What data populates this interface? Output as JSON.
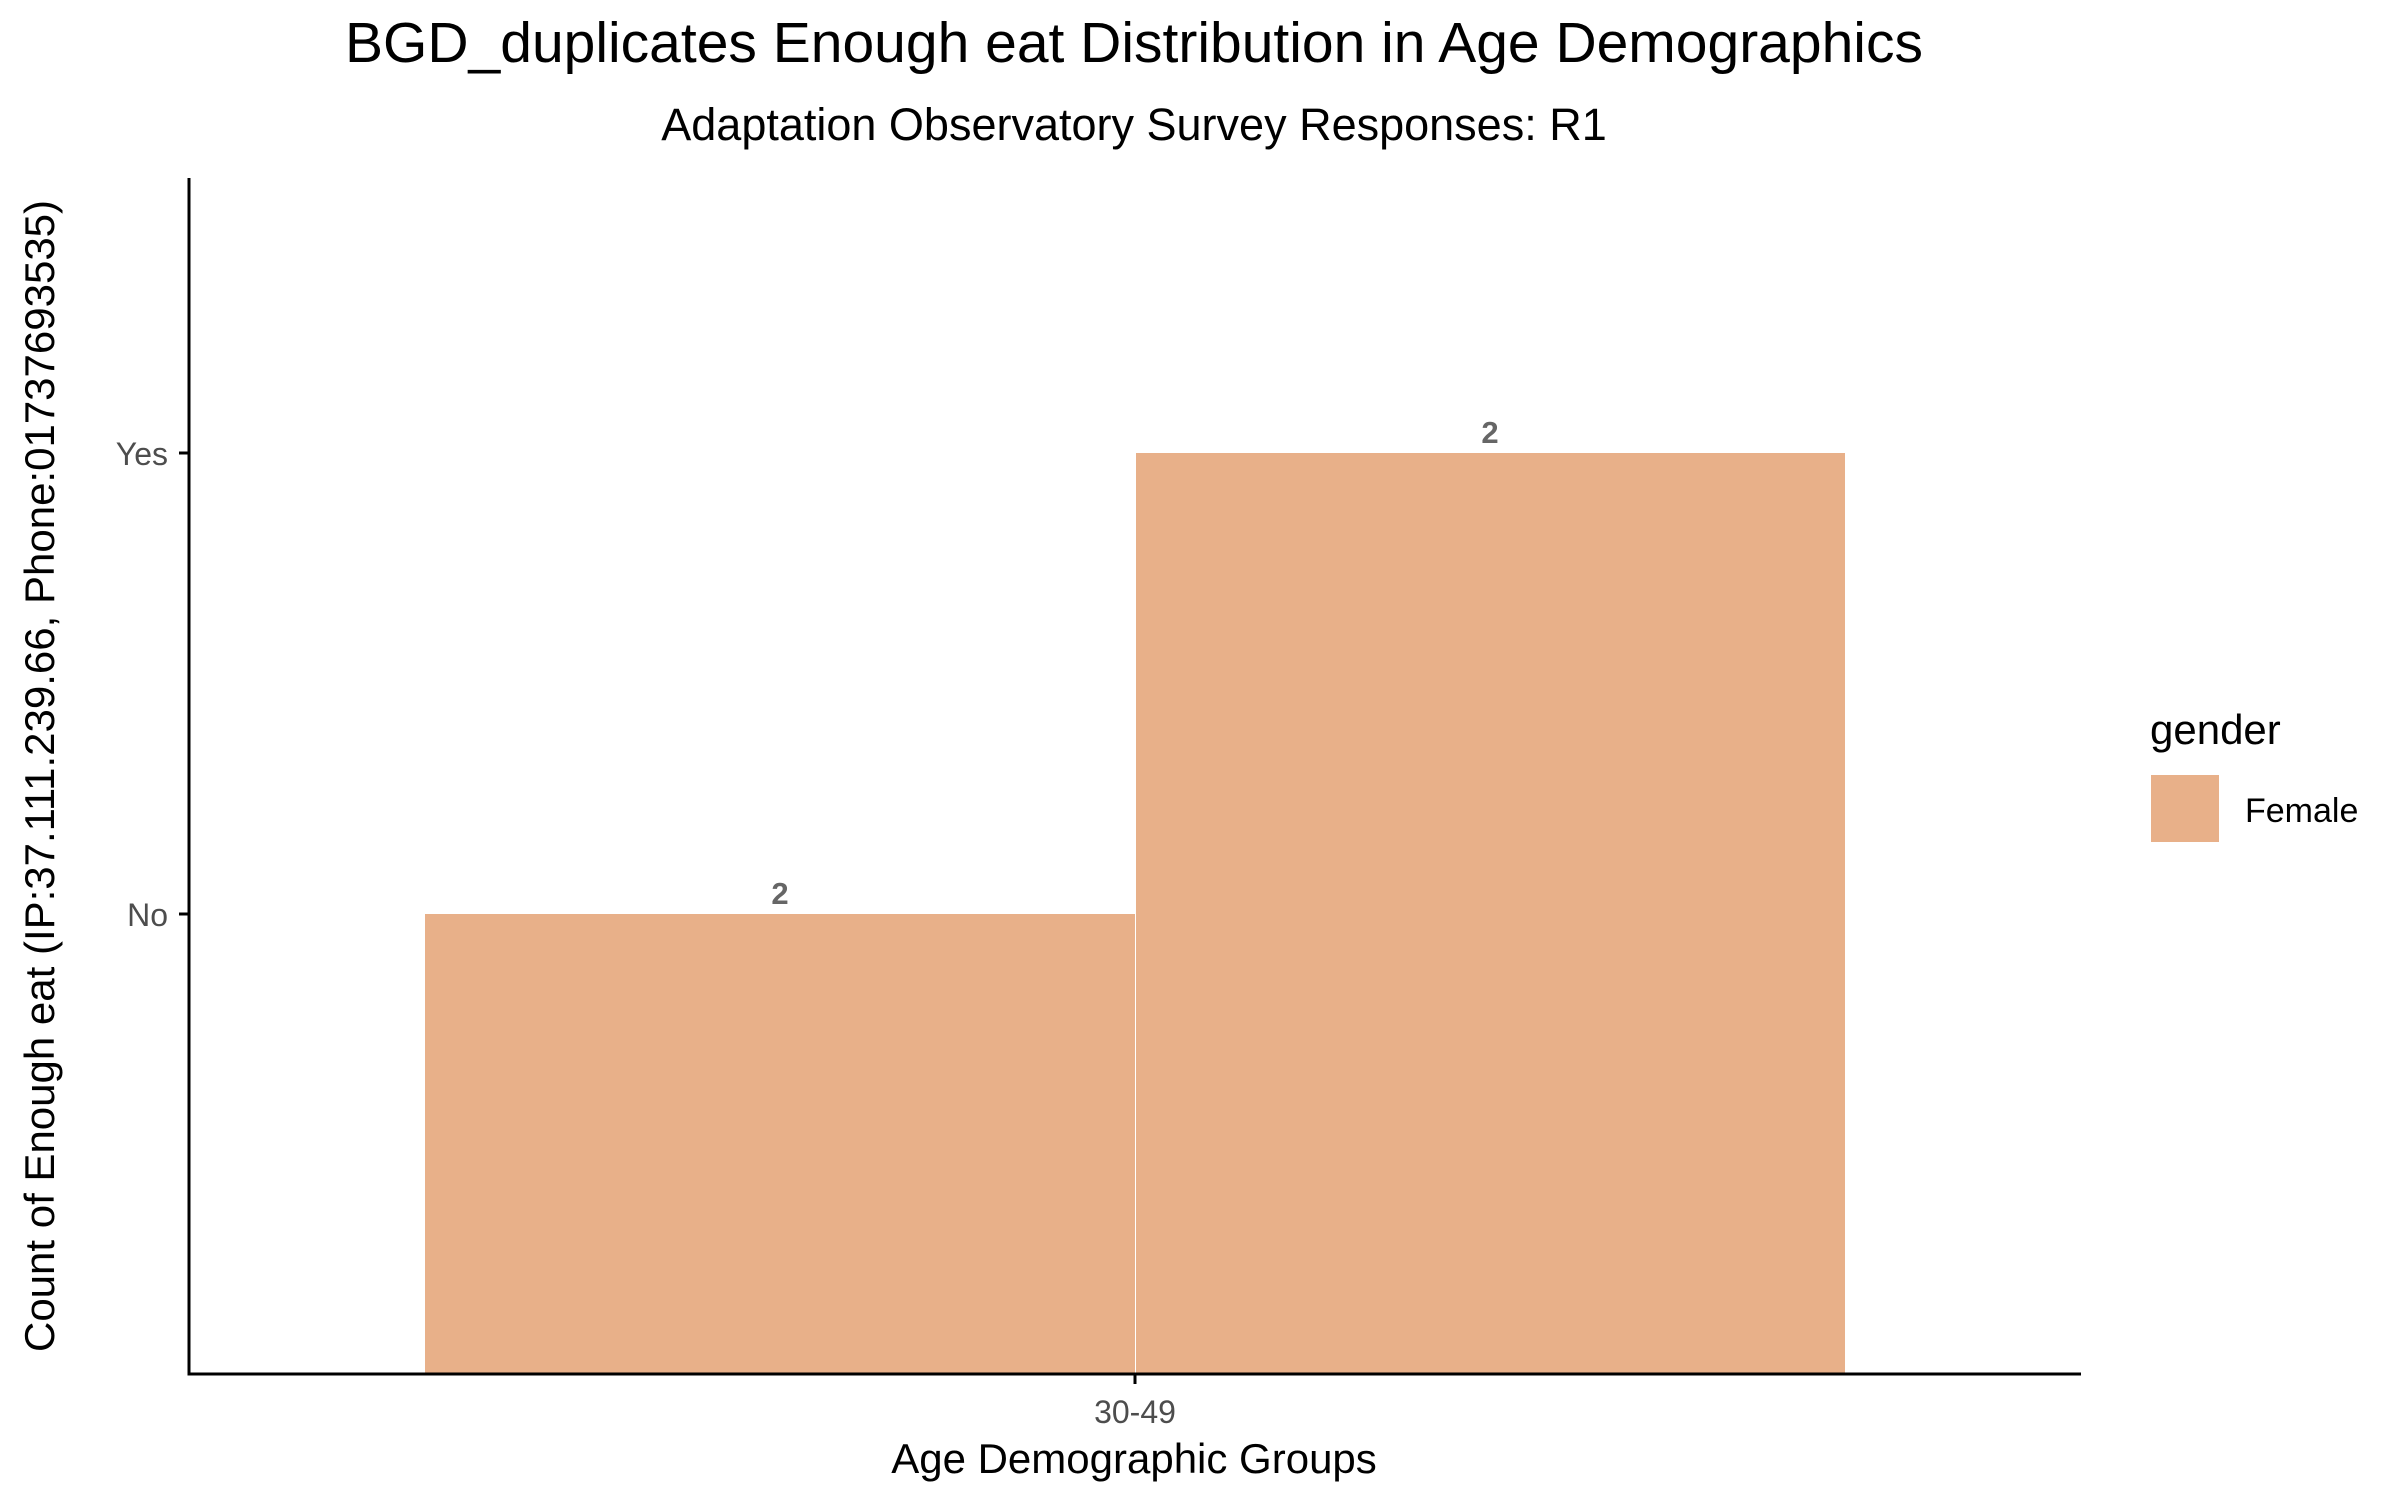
{
  "chart_data": {
    "type": "bar",
    "title": "BGD_duplicates Enough eat Distribution in Age Demographics",
    "subtitle": "Adaptation Observatory Survey Responses: R1",
    "xlabel": "Age Demographic Groups",
    "ylabel": "Count of Enough eat (IP:37.111.239.66, Phone:01737693535)",
    "categories": [
      "30-49"
    ],
    "y_categories": [
      "No",
      "Yes"
    ],
    "bars": [
      {
        "category": "30-49",
        "response": "No",
        "count": 2,
        "label": "2"
      },
      {
        "category": "30-49",
        "response": "Yes",
        "count": 2,
        "label": "2"
      }
    ],
    "legend": {
      "title": "gender",
      "position": "right",
      "items": [
        {
          "label": "Female",
          "color": "#e8b089"
        }
      ]
    },
    "colors": {
      "bar_fill": "#e8b089",
      "axis": "#000000",
      "tick_label": "#4d4d4d",
      "data_label": "#666666"
    },
    "grid": false
  }
}
